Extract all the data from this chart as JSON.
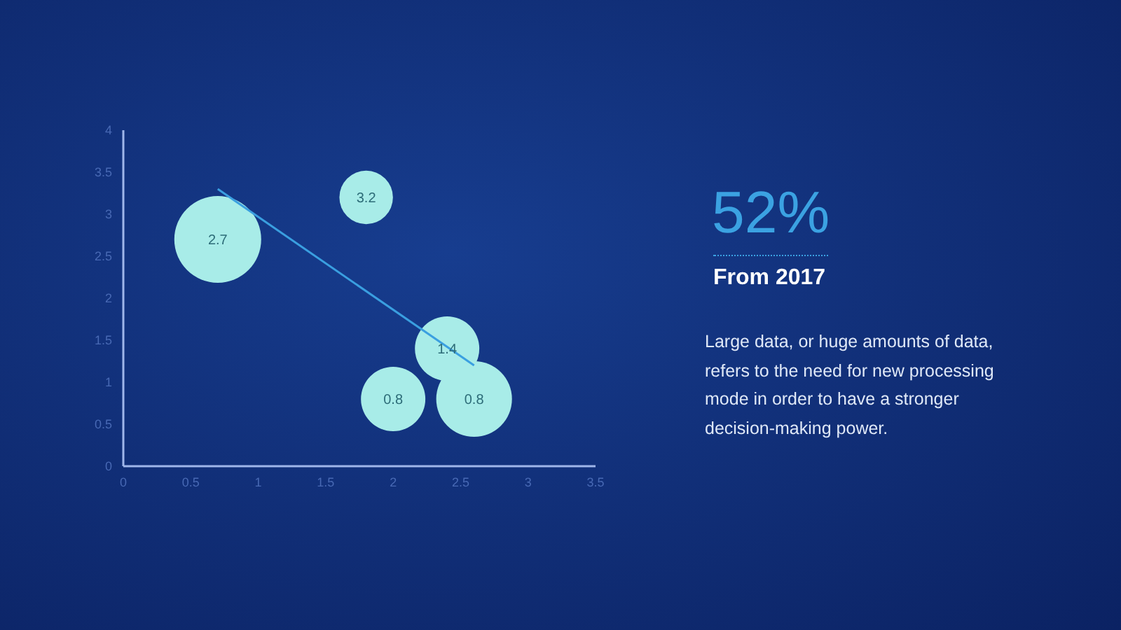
{
  "chart_data": {
    "type": "bubble",
    "series": [
      {
        "color": "#a8ece8",
        "x": [
          0.7,
          1.8,
          2.4,
          2.0,
          2.6
        ],
        "values": [
          2.7,
          3.2,
          1.4,
          0.8,
          0.8
        ],
        "sizes": [
          1,
          0.38,
          0.55,
          0.55,
          0.76
        ],
        "value_labels": [
          "2.7",
          "3.2",
          "1.4",
          "0.8",
          "0.8"
        ]
      },
      {
        "type": "line",
        "color": "#3a9fe0",
        "x": [
          0.7,
          2.6
        ],
        "values": [
          3.3,
          1.2
        ]
      }
    ],
    "xlim": [
      0,
      3.5
    ],
    "xticks": [
      0,
      0.5,
      1,
      1.5,
      2,
      2.5,
      3,
      3.5
    ],
    "ylim": [
      0,
      4
    ],
    "yticks": [
      0,
      0.5,
      1,
      1.5,
      2,
      2.5,
      3,
      3.5,
      4
    ],
    "annotations": [
      "52%",
      "From 2017",
      "Large data, or huge amounts of data, refers to the need for new processing mode in order to have a stronger decision-making power."
    ]
  }
}
